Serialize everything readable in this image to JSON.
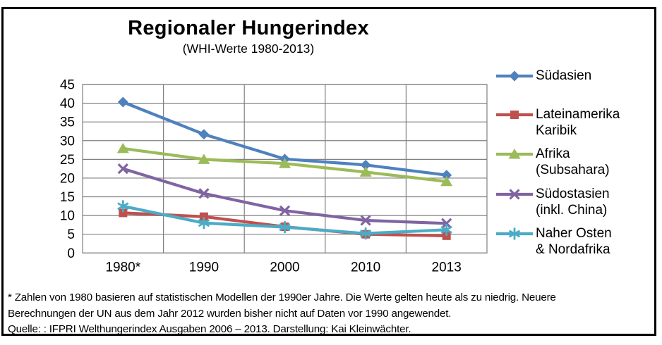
{
  "header": {
    "title": "Regionaler Hungerindex",
    "subtitle": "(WHI-Werte 1980-2013)"
  },
  "chart_data": {
    "type": "line",
    "title": "Regionaler Hungerindex",
    "subtitle": "(WHI-Werte 1980-2013)",
    "categories": [
      "1980*",
      "1990",
      "2000",
      "2010",
      "2013"
    ],
    "series": [
      {
        "name": "Südasien",
        "legend_label": "Südasien",
        "marker": "diamond",
        "color": "#4F81BD",
        "values": [
          40.3,
          31.7,
          25.1,
          23.5,
          20.8
        ]
      },
      {
        "name": "Lateinamerika Karibik",
        "legend_label": "Lateinamerika\nKaribik",
        "marker": "square",
        "color": "#C0504D",
        "values": [
          10.7,
          9.7,
          7.0,
          5.0,
          4.6
        ]
      },
      {
        "name": "Afrika (Subsahara)",
        "legend_label": "Afrika\n(Subsahara)",
        "marker": "triangle",
        "color": "#9BBB59",
        "values": [
          27.9,
          25.0,
          23.9,
          21.6,
          19.1
        ]
      },
      {
        "name": "Südostasien (inkl. China)",
        "legend_label": "Südostasien\n(inkl. China)",
        "marker": "x",
        "color": "#8064A2",
        "values": [
          22.5,
          15.9,
          11.3,
          8.7,
          7.9
        ]
      },
      {
        "name": "Naher Osten & Nordafrika",
        "legend_label": "Naher Osten\n& Nordafrika",
        "marker": "asterisk",
        "color": "#4BACC6",
        "values": [
          12.5,
          8.0,
          6.9,
          5.2,
          6.2
        ]
      }
    ],
    "xlabel": "",
    "ylabel": "",
    "ylim": [
      0,
      45
    ],
    "y_step": 5,
    "grid": true,
    "legend_position": "right",
    "gridline_color": "#808080"
  },
  "footer": {
    "line1": "* Zahlen von 1980 basieren auf statistischen Modellen der 1990er Jahre. Die Werte gelten heute als zu niedrig. Neuere",
    "line2": "Berechnungen der UN aus dem Jahr 2012 wurden bisher nicht auf Daten vor 1990 angewendet.",
    "line3": "Quelle: : IFPRI Welthungerindex Ausgaben 2006 – 2013. Darstellung: Kai Kleinwächter."
  }
}
